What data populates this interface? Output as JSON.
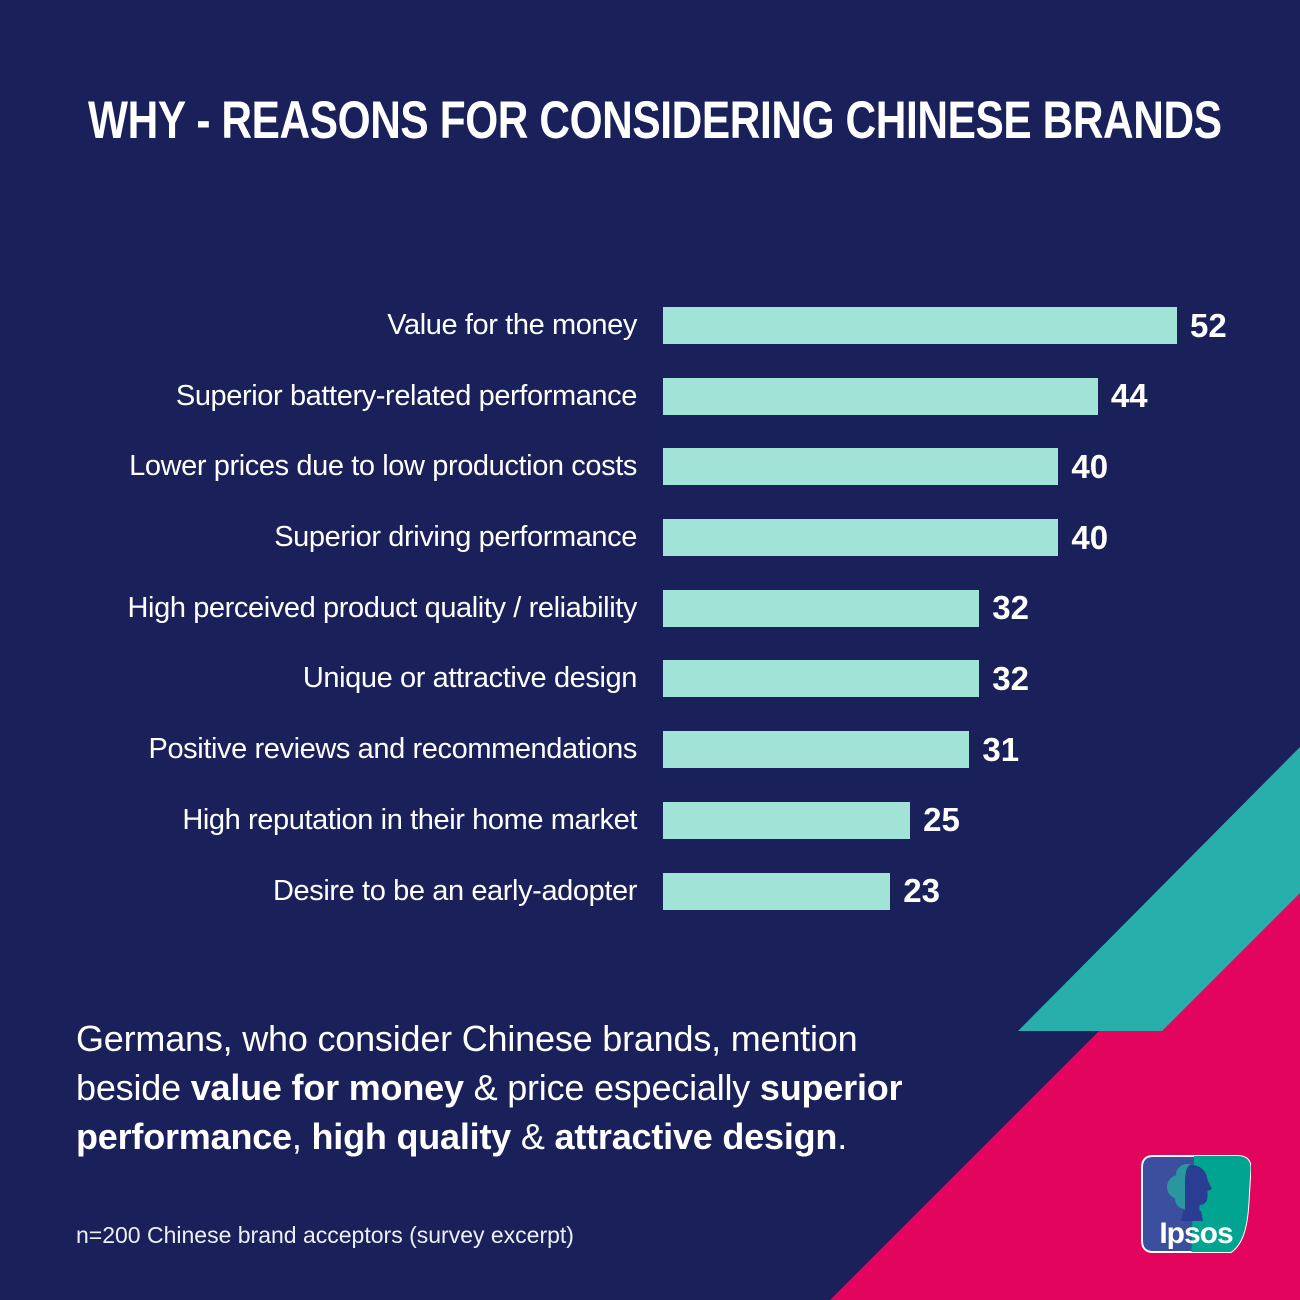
{
  "title": "WHY - REASONS FOR CONSIDERING CHINESE BRANDS",
  "chart_data": {
    "type": "bar",
    "orientation": "horizontal",
    "title": "WHY - REASONS FOR CONSIDERING CHINESE BRANDS",
    "categories": [
      "Value for the money",
      "Superior battery-related performance",
      "Lower prices due to low production costs",
      "Superior driving performance",
      "High perceived product quality / reliability",
      "Unique or attractive design",
      "Positive reviews and recommendations",
      "High reputation in their home market",
      "Desire to be an early-adopter"
    ],
    "values": [
      52,
      44,
      40,
      40,
      32,
      32,
      31,
      25,
      23
    ],
    "xlim": [
      0,
      52
    ],
    "value_label_position": "end-of-bar",
    "grid": false,
    "legend": false,
    "bar_color": "#A2E3D7"
  },
  "summary_lines": [
    [
      {
        "t": "Germans, who consider Chinese brands, mention",
        "b": false
      }
    ],
    [
      {
        "t": "beside ",
        "b": false
      },
      {
        "t": "value for money",
        "b": true
      },
      {
        "t": " & price especially ",
        "b": false
      },
      {
        "t": "superior",
        "b": true
      }
    ],
    [
      {
        "t": "performance",
        "b": true
      },
      {
        "t": ", ",
        "b": false
      },
      {
        "t": "high quality",
        "b": true
      },
      {
        "t": " & ",
        "b": false
      },
      {
        "t": "attractive design",
        "b": true
      },
      {
        "t": ".",
        "b": false
      }
    ]
  ],
  "footnote": "n=200 Chinese brand acceptors (survey excerpt)",
  "logo": {
    "wordmark": "Ipsos"
  },
  "colors": {
    "background": "#1A2059",
    "bar": "#A2E3D7",
    "accent_teal": "#28AFAC",
    "accent_pink": "#E2045D",
    "text": "#FFFFFF",
    "logo_blue": "#3C4F9E",
    "logo_teal": "#00A491",
    "logo_silhouette": "#2A3D93"
  }
}
